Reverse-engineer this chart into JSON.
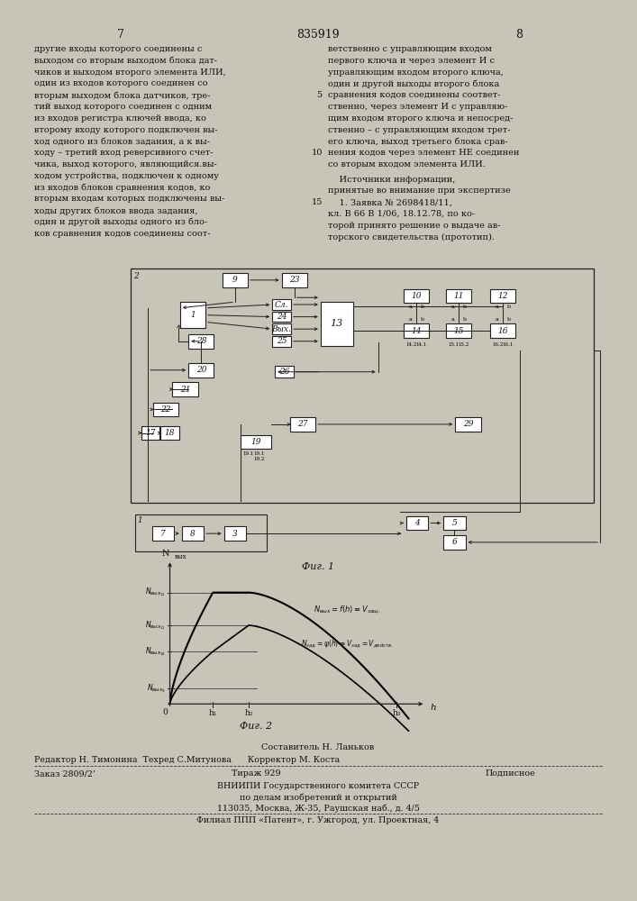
{
  "bg_color": "#c8c4b8",
  "page_color": "#f5f2eb",
  "text_color": "#111111",
  "header": {
    "left_num": "7",
    "center_num": "835919",
    "right_num": "8"
  },
  "left_col_lines": [
    "другие входы которого соединены с",
    "выходом со вторым выходом блока дат-",
    "чиков и выходом второго элемента ИЛИ,",
    "один из входов которого соединен со",
    "вторым выходом блока датчиков, тре-",
    "тий выход которого соединен с одним",
    "из входов регистра ключей ввода, ко",
    "второму входу которого подключен вы-",
    "ход одного из блоков задания, а к вы-",
    "ходу – третий вход реверсивного счет-",
    "чика, выход которого, являющийся.вы-",
    "ходом устройства, подключен к одному",
    "из входов блоков сравнения кодов, ко",
    "вторым входам которых подключены вы-",
    "ходы других блоков ввода задания,",
    "один и другой выходы одного из бло-",
    "ков сравнения кодов соединены соот-"
  ],
  "right_col_lines": [
    "ветственно с управляющим входом",
    "первого ключа и через элемент И с",
    "управляющим входом второго ключа,",
    "один и другой выходы второго блока",
    "сравнения кодов соединены соответ-",
    "ственно, через элемент И с управляю-",
    "щим входом второго ключа и непосред-",
    "ственно – с управляющим входом трет-",
    "его ключа, выход третьего блока срав-",
    "нения кодов через элемент НЕ соединен",
    "со вторым входом элемента ИЛИ."
  ],
  "src_lines": [
    "    Источники информации,",
    "принятые во внимание при экспертизе",
    "    1. Заявка № 2698418/11,",
    "кл. В 66 В 1/06, 18.12.78, по ко-",
    "торой принято решение о выдаче ав-",
    "торского свидетельства (прототип)."
  ],
  "line_numbers": {
    "5": 4,
    "10": 9,
    "15": 14
  },
  "fig1_caption": "Фиг. 1",
  "fig2_caption": "Фиг. 2",
  "footer": {
    "composer": "Составитель Н. Ланьков",
    "editor_line": "Редактор Н. Тимонина  Техред С.Митунова      Корректор М. Коста",
    "order": "Заказ 2809/2’",
    "tirazh": "Тираж 929",
    "podp": "Подписное",
    "org1": "ВНИИПИ Государственного комитета СССР",
    "org2": "по делам изобретений и открытий",
    "addr": "113035, Москва, Ж-35, Раушская наб., д. 4/5",
    "filial": "Филиал ППП «Патент», г. Ужгород, ул. Проектная, 4"
  }
}
